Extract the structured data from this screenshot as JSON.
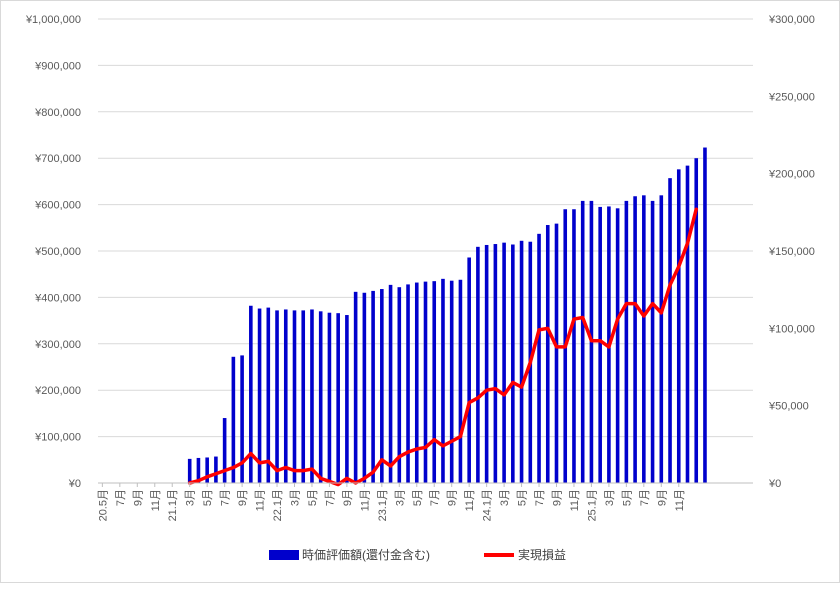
{
  "chart_data": {
    "type": "bar+line",
    "grid": true,
    "legend_position": "bottom",
    "x_tick_labels": [
      "20.5月",
      "7月",
      "9月",
      "11月",
      "21.1月",
      "3月",
      "5月",
      "7月",
      "9月",
      "11月",
      "22.1月",
      "3月",
      "5月",
      "7月",
      "9月",
      "11月",
      "23.1月",
      "3月",
      "5月",
      "7月",
      "9月",
      "11月",
      "24.1月",
      "3月",
      "5月",
      "7月",
      "9月",
      "11月",
      "25.1月",
      "3月",
      "5月",
      "7月",
      "9月",
      "11月"
    ],
    "y_left": {
      "min": 0,
      "max": 1000000,
      "ticks": [
        "¥0",
        "¥100,000",
        "¥200,000",
        "¥300,000",
        "¥400,000",
        "¥500,000",
        "¥600,000",
        "¥700,000",
        "¥800,000",
        "¥900,000",
        "¥1,000,000"
      ]
    },
    "y_right": {
      "min": 0,
      "max": 300000,
      "ticks": [
        "¥0",
        "¥50,000",
        "¥100,000",
        "¥150,000",
        "¥200,000",
        "¥250,000",
        "¥300,000"
      ]
    },
    "series": [
      {
        "name": "時価評価額(還付金含む)",
        "type": "bar",
        "axis": "left",
        "color": "#0000CC",
        "values": [
          0,
          0,
          0,
          0,
          0,
          0,
          0,
          0,
          0,
          0,
          52000,
          54000,
          55000,
          57000,
          140000,
          272000,
          275000,
          382000,
          376000,
          378000,
          372000,
          374000,
          372000,
          372000,
          374000,
          370000,
          367000,
          366000,
          362000,
          412000,
          410000,
          414000,
          418000,
          427000,
          422000,
          428000,
          432000,
          434000,
          435000,
          440000,
          436000,
          438000,
          486000,
          509000,
          513000,
          515000,
          518000,
          514000,
          522000,
          520000,
          537000,
          556000,
          559000,
          590000,
          590000,
          608000,
          608000,
          595000,
          596000,
          592000,
          608000,
          618000,
          620000,
          608000,
          620000,
          657000,
          676000,
          684000,
          700000,
          723000,
          0,
          0,
          0,
          0,
          0
        ]
      },
      {
        "name": "実現損益",
        "type": "line",
        "axis": "right",
        "color": "#FF0000",
        "values": [
          null,
          null,
          null,
          null,
          null,
          null,
          null,
          null,
          null,
          null,
          0,
          1500,
          4000,
          6000,
          8000,
          10000,
          13000,
          19000,
          13000,
          14000,
          8000,
          10000,
          8000,
          8000,
          9000,
          3000,
          1000,
          -1000,
          3000,
          0,
          3000,
          7000,
          15000,
          11000,
          17000,
          20000,
          22000,
          23000,
          28000,
          24000,
          27000,
          30000,
          52000,
          55000,
          60000,
          61000,
          57000,
          65000,
          62000,
          78000,
          99000,
          100000,
          88000,
          88000,
          106000,
          107000,
          92000,
          92000,
          88000,
          106000,
          116000,
          116000,
          108000,
          116000,
          110000,
          128000,
          140000,
          155000,
          177000,
          null,
          null,
          null,
          null,
          null
        ]
      }
    ]
  }
}
